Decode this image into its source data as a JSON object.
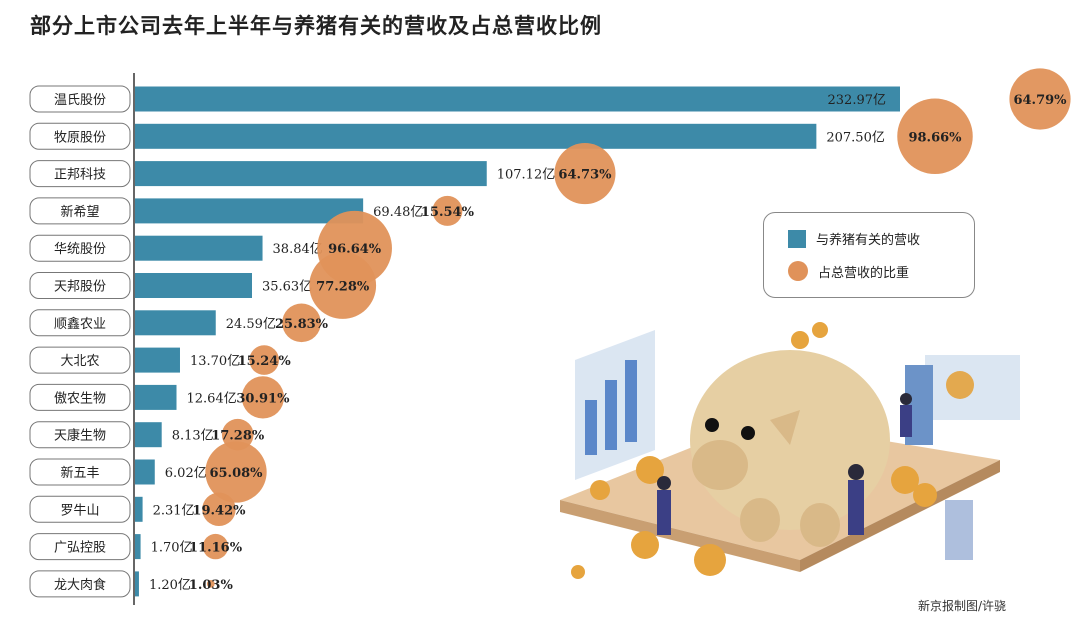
{
  "title": "部分上市公司去年上半年与养猪有关的营收及占总营收比例",
  "credit": "新京报制图/许骁",
  "colors": {
    "bar": "#3d8aa8",
    "bubble": "#e0925a",
    "axis": "#333333"
  },
  "legend": {
    "bar_label": "与养猪有关的营收",
    "bubble_label": "占总营收的比重"
  },
  "chart_data": {
    "type": "bar",
    "orientation": "horizontal",
    "categories": [
      "温氏股份",
      "牧原股份",
      "正邦科技",
      "新希望",
      "华统股份",
      "天邦股份",
      "顺鑫农业",
      "大北农",
      "傲农生物",
      "天康生物",
      "新五丰",
      "罗牛山",
      "广弘控股",
      "龙大肉食"
    ],
    "series": [
      {
        "name": "与养猪有关的营收",
        "values": [
          232.97,
          207.5,
          107.12,
          69.48,
          38.84,
          35.63,
          24.59,
          13.7,
          12.64,
          8.13,
          6.02,
          2.31,
          1.7,
          1.2
        ],
        "labels": [
          "232.97亿",
          "207.50亿",
          "107.12亿",
          "69.48亿",
          "38.84亿",
          "35.63亿",
          "24.59亿",
          "13.70亿",
          "12.64亿",
          "8.13亿",
          "6.02亿",
          "2.31亿",
          "1.70亿",
          "1.20亿"
        ]
      },
      {
        "name": "占总营收的比重",
        "values": [
          64.79,
          98.66,
          64.73,
          15.54,
          96.64,
          77.28,
          25.83,
          15.24,
          30.91,
          17.28,
          65.08,
          19.42,
          11.16,
          1.03
        ],
        "labels": [
          "64.79%",
          "98.66%",
          "64.73%",
          "15.54%",
          "96.64%",
          "77.28%",
          "25.83%",
          "15.24%",
          "30.91%",
          "17.28%",
          "65.08%",
          "19.42%",
          "11.16%",
          "1.03%"
        ]
      }
    ],
    "legend_position": "right",
    "grid": false
  }
}
